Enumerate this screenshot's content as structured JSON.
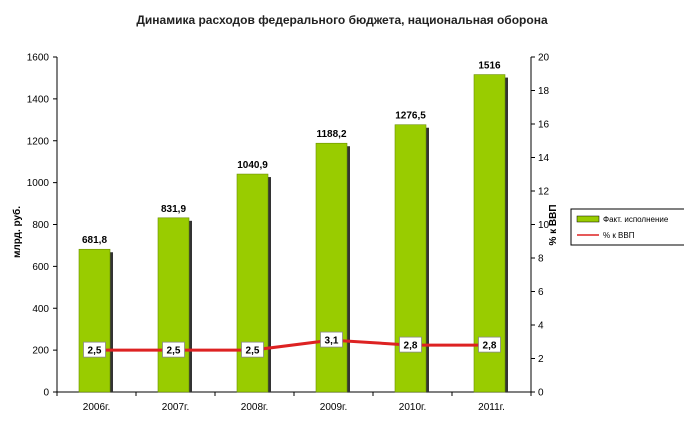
{
  "chart_data": {
    "type": "bar",
    "title": "Динамика расходов федерального бюджета, национальная оборона",
    "categories": [
      "2006г.",
      "2007г.",
      "2008г.",
      "2009г.",
      "2010г.",
      "2011г."
    ],
    "ylabel": "млрд. руб.",
    "y2label": "% к ВВП",
    "ylim": [
      0,
      1600
    ],
    "y_ticks": [
      0,
      200,
      400,
      600,
      800,
      1000,
      1200,
      1400,
      1600
    ],
    "y2lim": [
      0,
      20
    ],
    "y2_ticks": [
      0,
      2,
      4,
      6,
      8,
      10,
      12,
      14,
      16,
      18,
      20
    ],
    "series": [
      {
        "name": "Факт. исполнение",
        "type": "bar",
        "axis": "left",
        "values": [
          681.8,
          831.9,
          1040.9,
          1188.2,
          1276.5,
          1516
        ],
        "labels": [
          "681,8",
          "831,9",
          "1040,9",
          "1188,2",
          "1276,5",
          "1516"
        ],
        "color": "#99cc00"
      },
      {
        "name": "% к ВВП",
        "type": "line",
        "axis": "right",
        "values": [
          2.5,
          2.5,
          2.5,
          3.1,
          2.8,
          2.8
        ],
        "labels": [
          "2,5",
          "2,5",
          "2,5",
          "3,1",
          "2,8",
          "2,8"
        ],
        "color": "#dd2222"
      }
    ],
    "grid": false,
    "legend_position": "right"
  }
}
